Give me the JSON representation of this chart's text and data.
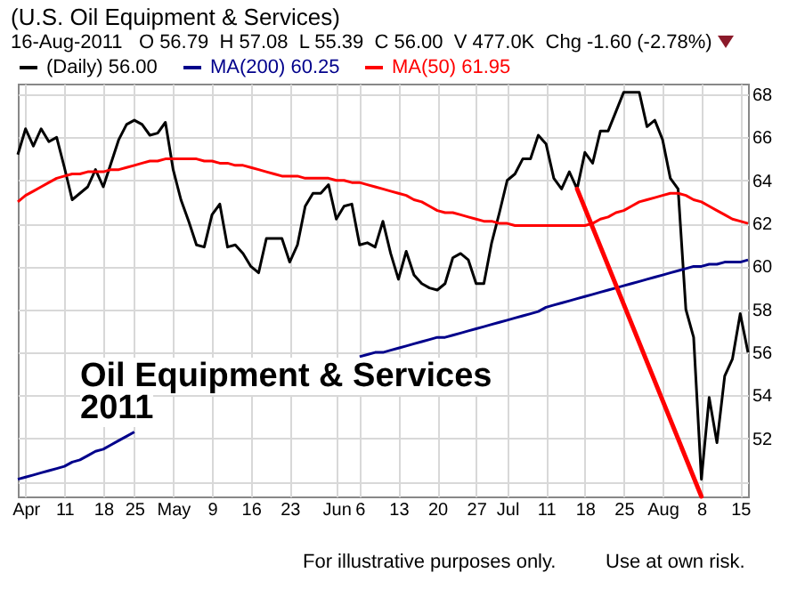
{
  "chart_data": {
    "type": "line",
    "title": "(U.S. Oil Equipment & Services)",
    "subtitle": "16-Aug-2011   O 56.79  H 57.08  L 55.39  C 56.00  V 477.0K  Chg -1.60 (-2.78%)",
    "annotations": [
      "Oil Equipment & Services",
      "2011",
      "For illustrative purposes only.",
      "Use at own risk."
    ],
    "categories": [
      null,
      "Apr",
      null,
      null,
      null,
      null,
      "11",
      null,
      null,
      null,
      null,
      "18",
      null,
      null,
      null,
      "25",
      null,
      null,
      null,
      null,
      "May",
      null,
      null,
      null,
      null,
      "9",
      null,
      null,
      null,
      null,
      "16",
      null,
      null,
      null,
      null,
      "23",
      null,
      null,
      null,
      null,
      null,
      "Jun",
      null,
      null,
      "6",
      null,
      null,
      null,
      null,
      "13",
      null,
      null,
      null,
      null,
      "20",
      null,
      null,
      null,
      null,
      "27",
      null,
      null,
      null,
      "Jul",
      null,
      null,
      null,
      null,
      "11",
      null,
      null,
      null,
      null,
      "18",
      null,
      null,
      null,
      null,
      "25",
      null,
      null,
      null,
      null,
      "Aug",
      null,
      null,
      null,
      null,
      "8",
      null,
      null,
      null,
      null,
      "15",
      null
    ],
    "series": [
      {
        "name": "(Daily) 56.00",
        "color": "#000000",
        "values": [
          65.2,
          66.4,
          65.6,
          66.4,
          65.8,
          66.0,
          64.6,
          63.1,
          63.4,
          63.7,
          64.5,
          63.7,
          64.8,
          65.9,
          66.6,
          66.8,
          66.6,
          66.1,
          66.2,
          66.7,
          64.5,
          63.1,
          62.1,
          61.0,
          60.9,
          62.4,
          62.9,
          60.9,
          61.0,
          60.6,
          60.0,
          59.7,
          61.3,
          61.3,
          61.3,
          60.2,
          61.0,
          62.8,
          63.4,
          63.4,
          63.8,
          62.2,
          62.8,
          62.9,
          61.0,
          61.1,
          60.9,
          62.1,
          60.6,
          59.4,
          60.7,
          59.6,
          59.2,
          59.0,
          58.9,
          59.2,
          60.4,
          60.6,
          60.3,
          59.2,
          59.2,
          61.1,
          62.5,
          64.0,
          64.3,
          65.0,
          65.0,
          66.1,
          65.7,
          64.1,
          63.6,
          64.4,
          63.6,
          65.3,
          64.8,
          66.3,
          66.3,
          67.2,
          68.1,
          68.1,
          68.1,
          66.5,
          66.8,
          65.9,
          64.1,
          63.6,
          58.0,
          56.7,
          50.1,
          53.9,
          51.8,
          54.9,
          55.7,
          57.8,
          56.0
        ]
      },
      {
        "name": "MA(200) 60.25",
        "color": "#00008b",
        "values": [
          50.1,
          50.2,
          50.3,
          50.4,
          50.5,
          50.6,
          50.7,
          50.9,
          51.0,
          51.2,
          51.4,
          51.5,
          51.7,
          51.9,
          52.1,
          52.3,
          null,
          null,
          null,
          null,
          null,
          null,
          null,
          null,
          null,
          null,
          null,
          null,
          null,
          null,
          null,
          null,
          null,
          null,
          null,
          null,
          null,
          null,
          null,
          null,
          null,
          null,
          null,
          null,
          55.8,
          55.9,
          56.0,
          56.0,
          56.1,
          56.2,
          56.3,
          56.4,
          56.5,
          56.6,
          56.7,
          56.7,
          56.8,
          56.9,
          57.0,
          57.1,
          57.2,
          57.3,
          57.4,
          57.5,
          57.6,
          57.7,
          57.8,
          57.9,
          58.1,
          58.2,
          58.3,
          58.4,
          58.5,
          58.6,
          58.7,
          58.8,
          58.9,
          59.0,
          59.1,
          59.2,
          59.3,
          59.4,
          59.5,
          59.6,
          59.7,
          59.8,
          59.9,
          60.0,
          60.0,
          60.1,
          60.1,
          60.2,
          60.2,
          60.2,
          60.3
        ]
      },
      {
        "name": "MA(50) 61.95",
        "color": "#ff0000",
        "values": [
          63.0,
          63.3,
          63.5,
          63.7,
          63.9,
          64.1,
          64.2,
          64.3,
          64.3,
          64.4,
          64.4,
          64.4,
          64.5,
          64.5,
          64.6,
          64.7,
          64.8,
          64.9,
          64.9,
          65.0,
          65.0,
          65.0,
          65.0,
          65.0,
          64.9,
          64.9,
          64.8,
          64.8,
          64.7,
          64.7,
          64.6,
          64.5,
          64.4,
          64.3,
          64.2,
          64.2,
          64.2,
          64.1,
          64.1,
          64.1,
          64.1,
          64.0,
          64.0,
          63.9,
          63.9,
          63.8,
          63.7,
          63.6,
          63.5,
          63.4,
          63.3,
          63.1,
          63.0,
          62.8,
          62.6,
          62.5,
          62.5,
          62.4,
          62.3,
          62.2,
          62.1,
          62.1,
          62.0,
          62.0,
          61.9,
          61.9,
          61.9,
          61.9,
          61.9,
          61.9,
          61.9,
          61.9,
          61.9,
          61.9,
          62.0,
          62.2,
          62.3,
          62.5,
          62.6,
          62.8,
          63.0,
          63.1,
          63.2,
          63.3,
          63.4,
          63.4,
          63.3,
          63.1,
          63.0,
          62.8,
          62.6,
          62.4,
          62.2,
          62.1,
          62.0
        ]
      },
      {
        "color": "#ff0000",
        "values": [
          null,
          null,
          null,
          null,
          null,
          null,
          null,
          null,
          null,
          null,
          null,
          null,
          null,
          null,
          null,
          null,
          null,
          null,
          null,
          null,
          null,
          null,
          null,
          null,
          null,
          null,
          null,
          null,
          null,
          null,
          null,
          null,
          null,
          null,
          null,
          null,
          null,
          null,
          null,
          null,
          null,
          null,
          null,
          null,
          null,
          null,
          null,
          null,
          null,
          null,
          null,
          null,
          null,
          null,
          null,
          null,
          null,
          null,
          null,
          null,
          null,
          null,
          null,
          null,
          null,
          null,
          null,
          null,
          null,
          null,
          null,
          null,
          63.6,
          null,
          null,
          null,
          null,
          null,
          null,
          null,
          null,
          null,
          null,
          null,
          null,
          null,
          null,
          null,
          49.3,
          null,
          null,
          null,
          null,
          null,
          null
        ]
      }
    ],
    "ylim": [
      49.3,
      68.5
    ],
    "yticks": [
      {
        "value": 50,
        "label": null
      },
      52,
      54,
      56,
      58,
      60,
      62,
      64,
      66,
      68
    ],
    "grid": true,
    "legend": "top"
  }
}
